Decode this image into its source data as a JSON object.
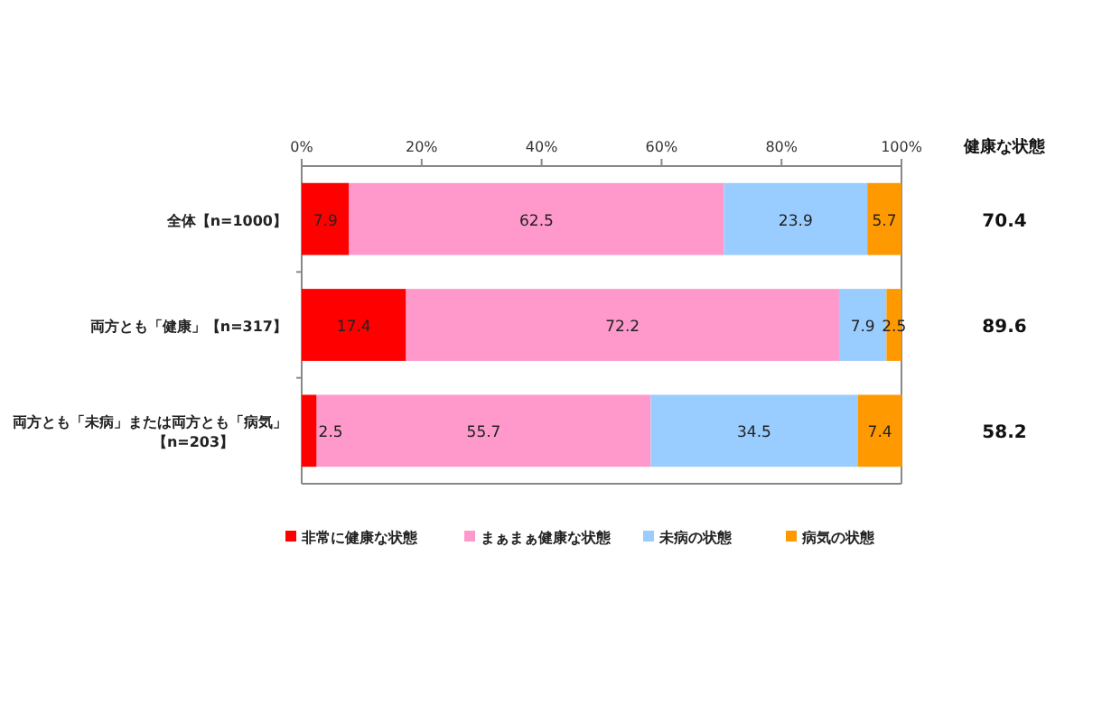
{
  "chart_data": {
    "type": "bar",
    "orientation": "horizontal",
    "stacked": true,
    "data_labels": true,
    "legend": "bottom",
    "grid": false,
    "categories": [
      "全体【n=1000】",
      "両方とも「健康」【n=317】",
      "両方とも「未病」または両方とも「病気」【n=203】"
    ],
    "xlim": [
      0,
      100
    ],
    "xticks": [
      {
        "value": 0,
        "label": "0%"
      },
      {
        "value": 20,
        "label": "20%"
      },
      {
        "value": 40,
        "label": "40%"
      },
      {
        "value": 60,
        "label": "60%"
      },
      {
        "value": 80,
        "label": "80%"
      },
      {
        "value": 100,
        "label": "100%"
      }
    ],
    "series": [
      {
        "name": "非常に健康な状態",
        "color": "#ff0000",
        "values": [
          7.9,
          17.4,
          2.5
        ]
      },
      {
        "name": "まぁまぁ健康な状態",
        "color": "#ff99cc",
        "values": [
          62.5,
          72.2,
          55.7
        ]
      },
      {
        "name": "未病の状態",
        "color": "#99ccff",
        "values": [
          23.9,
          7.9,
          34.5
        ]
      },
      {
        "name": "病気の状態",
        "color": "#ff9900",
        "values": [
          5.7,
          2.5,
          7.4
        ]
      }
    ],
    "annotations": [
      "健康な状態",
      "70.4",
      "89.6",
      "58.2"
    ]
  }
}
